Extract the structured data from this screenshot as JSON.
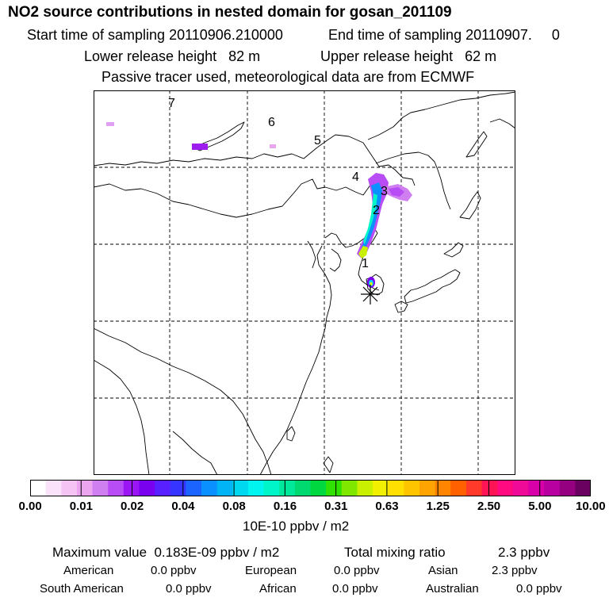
{
  "header": {
    "title": "NO2 source contributions in nested domain for gosan_201109",
    "start_sampling": "Start time of sampling 20110906.210000",
    "end_sampling": "End time of sampling 20110907.     0",
    "lower_release": "Lower release height   82 m",
    "upper_release": "Upper release height   62 m",
    "tracer_note": "Passive tracer used, meteorological data are from ECMWF"
  },
  "map": {
    "region_labels": [
      "1",
      "2",
      "3",
      "4",
      "5",
      "6",
      "7"
    ],
    "receptor_marker": "asterisk"
  },
  "colorbar": {
    "colors": [
      "#ffffff",
      "#fbe2fb",
      "#f5c4f5",
      "#eba5ef",
      "#cf7ff0",
      "#b84cf5",
      "#9a16f5",
      "#7a00f0",
      "#5820ff",
      "#3535ff",
      "#1c64ff",
      "#0a90ff",
      "#00b4f5",
      "#00d8ef",
      "#00f5f0",
      "#00f5c8",
      "#00e89a",
      "#00d870",
      "#00d840",
      "#30e000",
      "#80e800",
      "#c8f000",
      "#f2f000",
      "#ffe000",
      "#ffc400",
      "#ffa400",
      "#ff8400",
      "#ff6000",
      "#ff3a2a",
      "#ff1555",
      "#ff0a80",
      "#f00a98",
      "#d800a8",
      "#b800a0",
      "#940080",
      "#6a0060"
    ],
    "tick_labels": [
      "0.00",
      "0.01",
      "0.02",
      "0.04",
      "0.08",
      "0.16",
      "0.31",
      "0.63",
      "1.25",
      "2.50",
      "5.00",
      "10.00"
    ],
    "units": "10E-10 ppbv / m2"
  },
  "summary": {
    "max_value": "Maximum value  0.183E-09 ppbv / m2",
    "total_mixing_label": "Total mixing ratio",
    "total_mixing_value": "2.3 ppbv",
    "regions": [
      {
        "name": "American",
        "value": "0.0 ppbv"
      },
      {
        "name": "European",
        "value": "0.0 ppbv"
      },
      {
        "name": "Asian",
        "value": "2.3 ppbv"
      },
      {
        "name": "South American",
        "value": "0.0 ppbv"
      },
      {
        "name": "African",
        "value": "0.0 ppbv"
      },
      {
        "name": "Australian",
        "value": "0.0 ppbv"
      }
    ]
  }
}
